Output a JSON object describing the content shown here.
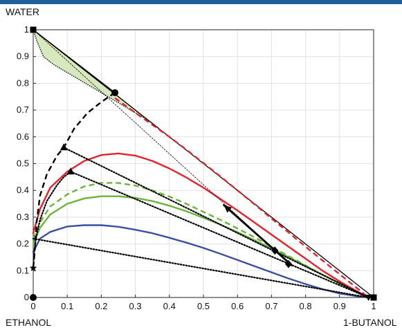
{
  "chart_data": {
    "type": "line",
    "title": "",
    "corner_labels": {
      "top": "WATER",
      "bottom_left": "ETHANOL",
      "bottom_right": "1-BUTANOL"
    },
    "xlim": [
      0,
      1
    ],
    "ylim": [
      0,
      1
    ],
    "grid": true,
    "x_ticks": [
      "0",
      "0.1",
      "0.2",
      "0.3",
      "0.4",
      "0.5",
      "0.6",
      "0.7",
      "0.8",
      "0.9",
      "1"
    ],
    "y_ticks": [
      "0",
      "0.1",
      "0.2",
      "0.3",
      "0.4",
      "0.5",
      "0.6",
      "0.7",
      "0.8",
      "0.9",
      "1"
    ],
    "colors": {
      "red": "#e8202a",
      "green": "#6ab43a",
      "blue": "#3a4fa0",
      "black": "#000000",
      "lle_fill": "#d7e8bf"
    },
    "lle_region": {
      "x": [
        0,
        0.01,
        0.03,
        0.06,
        0.1,
        0.14,
        0.18,
        0.22,
        0.26,
        0.3,
        0.34,
        0.37,
        0.34,
        0.3,
        0.26,
        0.23,
        0.19,
        0.15,
        0.11,
        0.07,
        0.04,
        0.02,
        0
      ],
      "y": [
        1,
        0.96,
        0.9,
        0.87,
        0.84,
        0.81,
        0.78,
        0.75,
        0.72,
        0.69,
        0.66,
        0.63,
        0.66,
        0.7,
        0.74,
        0.77,
        0.81,
        0.85,
        0.89,
        0.93,
        0.96,
        0.98,
        1
      ]
    },
    "series": [
      {
        "color": "blue",
        "style": "solid",
        "x": [
          0,
          0.02,
          0.05,
          0.1,
          0.15,
          0.2,
          0.25,
          0.3,
          0.35,
          0.4,
          0.45,
          0.5,
          0.55,
          0.6,
          0.65,
          0.7,
          0.75,
          0.8,
          0.85,
          0.9,
          0.95,
          0.985
        ],
        "y": [
          0.17,
          0.22,
          0.245,
          0.265,
          0.27,
          0.27,
          0.264,
          0.253,
          0.24,
          0.223,
          0.205,
          0.185,
          0.163,
          0.14,
          0.117,
          0.094,
          0.071,
          0.05,
          0.031,
          0.015,
          0.005,
          0
        ]
      },
      {
        "color": "green",
        "style": "solid",
        "x": [
          0,
          0.02,
          0.05,
          0.1,
          0.15,
          0.2,
          0.25,
          0.3,
          0.35,
          0.4,
          0.45,
          0.5,
          0.55,
          0.6,
          0.65,
          0.7,
          0.75,
          0.8,
          0.85,
          0.9,
          0.95,
          0.985
        ],
        "y": [
          0.2,
          0.26,
          0.31,
          0.35,
          0.37,
          0.378,
          0.378,
          0.372,
          0.36,
          0.343,
          0.322,
          0.298,
          0.272,
          0.244,
          0.214,
          0.183,
          0.151,
          0.118,
          0.085,
          0.053,
          0.022,
          0
        ]
      },
      {
        "color": "green",
        "style": "dashed",
        "x": [
          0,
          0.02,
          0.05,
          0.1,
          0.15,
          0.2,
          0.25,
          0.3,
          0.35,
          0.4,
          0.45,
          0.5,
          0.55,
          0.6,
          0.65,
          0.7,
          0.75,
          0.8,
          0.85,
          0.9,
          0.95,
          0.985
        ],
        "y": [
          0.22,
          0.28,
          0.34,
          0.385,
          0.415,
          0.428,
          0.428,
          0.418,
          0.4,
          0.377,
          0.35,
          0.32,
          0.29,
          0.258,
          0.225,
          0.19,
          0.155,
          0.12,
          0.085,
          0.052,
          0.02,
          0
        ]
      },
      {
        "color": "red",
        "style": "solid",
        "x": [
          0,
          0.02,
          0.05,
          0.1,
          0.15,
          0.2,
          0.25,
          0.3,
          0.35,
          0.4,
          0.45,
          0.5,
          0.55,
          0.6,
          0.65,
          0.7,
          0.75,
          0.8,
          0.85,
          0.9,
          0.95,
          0.985
        ],
        "y": [
          0.24,
          0.33,
          0.41,
          0.47,
          0.51,
          0.532,
          0.538,
          0.53,
          0.51,
          0.482,
          0.448,
          0.41,
          0.368,
          0.325,
          0.28,
          0.235,
          0.19,
          0.145,
          0.1,
          0.06,
          0.024,
          0
        ]
      },
      {
        "color": "red",
        "style": "dashed",
        "x": [
          0.24,
          0.3,
          0.35,
          0.4,
          0.45,
          0.5,
          0.55,
          0.6,
          0.65,
          0.7,
          0.75,
          0.8,
          0.85,
          0.9,
          0.95,
          0.985
        ],
        "y": [
          0.745,
          0.69,
          0.645,
          0.6,
          0.552,
          0.502,
          0.452,
          0.4,
          0.348,
          0.295,
          0.243,
          0.19,
          0.138,
          0.087,
          0.036,
          0
        ]
      },
      {
        "color": "black",
        "style": "dashed",
        "x": [
          0,
          0.005,
          0.01,
          0.02,
          0.04,
          0.07,
          0.09,
          0.12,
          0.16,
          0.2,
          0.24
        ],
        "y": [
          0.11,
          0.18,
          0.28,
          0.38,
          0.46,
          0.53,
          0.56,
          0.63,
          0.69,
          0.73,
          0.765
        ]
      },
      {
        "color": "black",
        "style": "dotted",
        "x": [
          0,
          0.003,
          0.008,
          0.02,
          0.04,
          0.07,
          0.09,
          0.11
        ],
        "y": [
          0.11,
          0.17,
          0.22,
          0.29,
          0.36,
          0.42,
          0.45,
          0.47
        ]
      },
      {
        "color": "black",
        "style": "dotted",
        "x": [
          0.09,
          0.985
        ],
        "y": [
          0.56,
          0
        ]
      },
      {
        "color": "black",
        "style": "dotted",
        "x": [
          0.11,
          0.985
        ],
        "y": [
          0.47,
          0
        ]
      },
      {
        "color": "black",
        "style": "dotted",
        "x": [
          0.0,
          0.985
        ],
        "y": [
          0.22,
          0
        ]
      },
      {
        "color": "black",
        "style": "thin",
        "x": [
          0,
          0.76
        ],
        "y": [
          1,
          0.12
        ]
      },
      {
        "color": "black",
        "style": "arrow",
        "x": [
          0.76,
          0.56
        ],
        "y": [
          0.12,
          0.345
        ]
      }
    ],
    "triangle_edges": [
      {
        "x": [
          0,
          1
        ],
        "y": [
          1,
          0
        ]
      },
      {
        "x": [
          0,
          0.24
        ],
        "y": [
          1,
          0.765
        ]
      }
    ],
    "markers": [
      {
        "shape": "square",
        "x": 0,
        "y": 1
      },
      {
        "shape": "square",
        "x": 1,
        "y": 0
      },
      {
        "shape": "circle",
        "x": 0.24,
        "y": 0.765
      },
      {
        "shape": "circle",
        "x": 0,
        "y": 0
      },
      {
        "shape": "triangle",
        "x": 0.09,
        "y": 0.56
      },
      {
        "shape": "triangle",
        "x": 0.11,
        "y": 0.47
      },
      {
        "shape": "star",
        "x": 0,
        "y": 0.11
      },
      {
        "shape": "diamond",
        "x": 0.71,
        "y": 0.175
      },
      {
        "shape": "diamond",
        "x": 0.75,
        "y": 0.125
      },
      {
        "shape": "triangle-down",
        "x": 0.985,
        "y": 0
      }
    ]
  }
}
